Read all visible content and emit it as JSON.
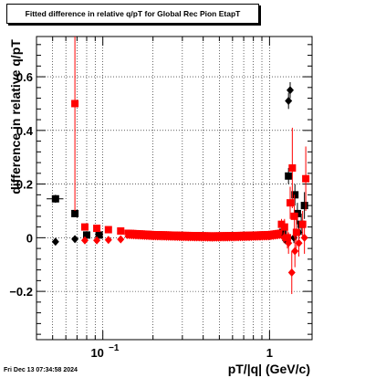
{
  "chart_data": {
    "type": "scatter",
    "title": "Fitted difference in relative q/pT for Global Rec Pion EtapT",
    "xlabel": "pT/|q| (GeV/c)",
    "ylabel": "difference in relative q/pT",
    "xscale": "log",
    "xlim": [
      0.04,
      1.8
    ],
    "ylim": [
      -0.38,
      0.75
    ],
    "x_ticks": [
      {
        "value": 0.1,
        "base": "10",
        "exp": "−1"
      },
      {
        "value": 1,
        "label": "1"
      }
    ],
    "y_ticks": [
      {
        "value": -0.2,
        "label": "−0.2"
      },
      {
        "value": 0,
        "label": "0"
      },
      {
        "value": 0.2,
        "label": "0.2"
      },
      {
        "value": 0.4,
        "label": "0.4"
      },
      {
        "value": 0.6,
        "label": "0.6"
      }
    ],
    "grid": true,
    "series": [
      {
        "color": "#000000",
        "points": [
          {
            "x": 0.052,
            "y": 0.145,
            "ey": 0.015,
            "marker": "square",
            "xerr": [
              0.046,
              0.058
            ]
          },
          {
            "x": 0.068,
            "y": 0.09,
            "ey": 0.01,
            "marker": "square"
          },
          {
            "x": 0.052,
            "y": -0.015,
            "ey": 0.005,
            "marker": "diamond"
          },
          {
            "x": 0.068,
            "y": -0.005,
            "ey": 0.005,
            "marker": "diamond"
          },
          {
            "x": 0.08,
            "y": 0.01,
            "ey": 0.005,
            "marker": "square"
          },
          {
            "x": 0.095,
            "y": 0.01,
            "ey": 0.005,
            "marker": "square"
          },
          {
            "x": 1.2,
            "y": 0.02,
            "ey": 0.01,
            "marker": "square"
          },
          {
            "x": 1.25,
            "y": -0.01,
            "ey": 0.01,
            "marker": "diamond"
          },
          {
            "x": 1.3,
            "y": 0.51,
            "ey": 0.03,
            "marker": "diamond"
          },
          {
            "x": 1.33,
            "y": 0.55,
            "ey": 0.03,
            "marker": "diamond"
          },
          {
            "x": 1.3,
            "y": 0.23,
            "ey": 0.03,
            "marker": "square"
          },
          {
            "x": 1.42,
            "y": 0.16,
            "ey": 0.04,
            "marker": "square"
          },
          {
            "x": 1.47,
            "y": 0.09,
            "ey": 0.04,
            "marker": "square"
          },
          {
            "x": 1.55,
            "y": 0.05,
            "ey": 0.04,
            "marker": "square"
          },
          {
            "x": 1.62,
            "y": 0.12,
            "ey": 0.05,
            "marker": "square"
          },
          {
            "x": 1.4,
            "y": 0.0,
            "ey": 0.02,
            "marker": "diamond"
          },
          {
            "x": 1.5,
            "y": 0.02,
            "ey": 0.03,
            "marker": "diamond"
          }
        ]
      },
      {
        "color": "#ff0000",
        "points": [
          {
            "x": 0.068,
            "y": 0.5,
            "ey": 0.4,
            "marker": "square"
          },
          {
            "x": 0.078,
            "y": 0.04,
            "ey": 0.01,
            "marker": "square"
          },
          {
            "x": 0.092,
            "y": 0.035,
            "ey": 0.008,
            "marker": "square"
          },
          {
            "x": 0.108,
            "y": 0.03,
            "ey": 0.006,
            "marker": "square"
          },
          {
            "x": 0.128,
            "y": 0.025,
            "ey": 0.005,
            "marker": "square"
          },
          {
            "x": 0.078,
            "y": -0.01,
            "ey": 0.005,
            "marker": "diamond"
          },
          {
            "x": 0.092,
            "y": -0.01,
            "ey": 0.005,
            "marker": "diamond"
          },
          {
            "x": 0.108,
            "y": -0.008,
            "ey": 0.005,
            "marker": "diamond"
          },
          {
            "x": 0.128,
            "y": -0.006,
            "ey": 0.005,
            "marker": "diamond"
          },
          {
            "x": 1.18,
            "y": 0.05,
            "ey": 0.02,
            "marker": "square"
          },
          {
            "x": 1.23,
            "y": 0.04,
            "ey": 0.03,
            "marker": "square"
          },
          {
            "x": 1.28,
            "y": 0.0,
            "ey": 0.04,
            "marker": "square"
          },
          {
            "x": 1.33,
            "y": 0.13,
            "ey": 0.06,
            "marker": "square"
          },
          {
            "x": 1.37,
            "y": 0.26,
            "ey": 0.15,
            "marker": "square"
          },
          {
            "x": 1.41,
            "y": 0.08,
            "ey": 0.08,
            "marker": "square"
          },
          {
            "x": 1.45,
            "y": 0.02,
            "ey": 0.06,
            "marker": "square"
          },
          {
            "x": 1.58,
            "y": 0.05,
            "ey": 0.05,
            "marker": "square"
          },
          {
            "x": 1.65,
            "y": 0.22,
            "ey": 0.12,
            "marker": "square"
          },
          {
            "x": 1.22,
            "y": 0.0,
            "ey": 0.02,
            "marker": "diamond"
          },
          {
            "x": 1.3,
            "y": -0.02,
            "ey": 0.04,
            "marker": "diamond"
          },
          {
            "x": 1.36,
            "y": -0.13,
            "ey": 0.08,
            "marker": "diamond"
          },
          {
            "x": 1.42,
            "y": -0.05,
            "ey": 0.06,
            "marker": "diamond"
          },
          {
            "x": 1.5,
            "y": -0.02,
            "ey": 0.05,
            "marker": "diamond"
          },
          {
            "x": 1.62,
            "y": 0.0,
            "ey": 0.06,
            "marker": "diamond"
          }
        ],
        "band": {
          "x_range": [
            0.14,
            1.15
          ],
          "values": [
            {
              "x": 0.14,
              "y": 0.02
            },
            {
              "x": 0.2,
              "y": 0.015
            },
            {
              "x": 0.3,
              "y": 0.012
            },
            {
              "x": 0.45,
              "y": 0.01
            },
            {
              "x": 0.7,
              "y": 0.012
            },
            {
              "x": 1.0,
              "y": 0.015
            },
            {
              "x": 1.15,
              "y": 0.02
            }
          ]
        }
      }
    ]
  },
  "footer": {
    "timestamp": "Fri Dec 13 07:34:58 2024"
  }
}
